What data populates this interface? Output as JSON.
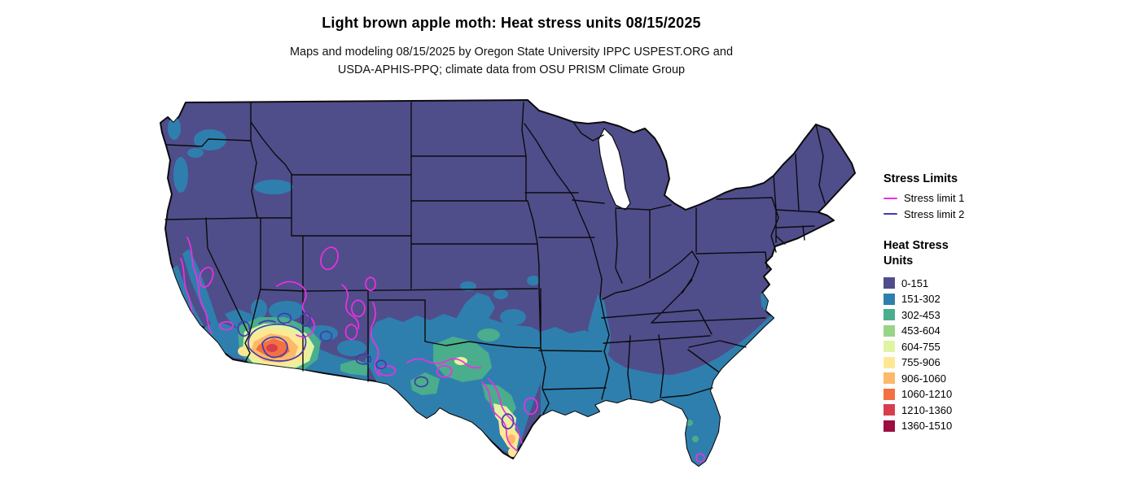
{
  "title": "Light brown apple moth: Heat stress units 08/15/2025",
  "subtitle_line1": "Maps and modeling 08/15/2025 by Oregon State University IPPC USPEST.ORG and",
  "subtitle_line2": "USDA-APHIS-PPQ; climate data from OSU PRISM Climate Group",
  "legend": {
    "stress_limits": {
      "heading": "Stress Limits",
      "items": [
        {
          "label": "Stress limit 1",
          "color": "#ee2fe2"
        },
        {
          "label": "Stress limit 2",
          "color": "#3d3daf"
        }
      ]
    },
    "heat_stress": {
      "heading_line1": "Heat Stress",
      "heading_line2": "Units",
      "items": [
        {
          "label": "0-151",
          "color": "#504d8b"
        },
        {
          "label": "151-302",
          "color": "#2f7fae"
        },
        {
          "label": "302-453",
          "color": "#4aad8c"
        },
        {
          "label": "453-604",
          "color": "#98d488"
        },
        {
          "label": "604-755",
          "color": "#e2f3a2"
        },
        {
          "label": "755-906",
          "color": "#fee894"
        },
        {
          "label": "906-1060",
          "color": "#fdb96a"
        },
        {
          "label": "1060-1210",
          "color": "#f37042"
        },
        {
          "label": "1210-1360",
          "color": "#d63e4e"
        },
        {
          "label": "1360-1510",
          "color": "#9c0d41"
        }
      ]
    }
  },
  "map": {
    "description": "Contiguous United States choropleth of heat stress units with stress limit contour lines",
    "date_shown": "08/15/2025"
  }
}
